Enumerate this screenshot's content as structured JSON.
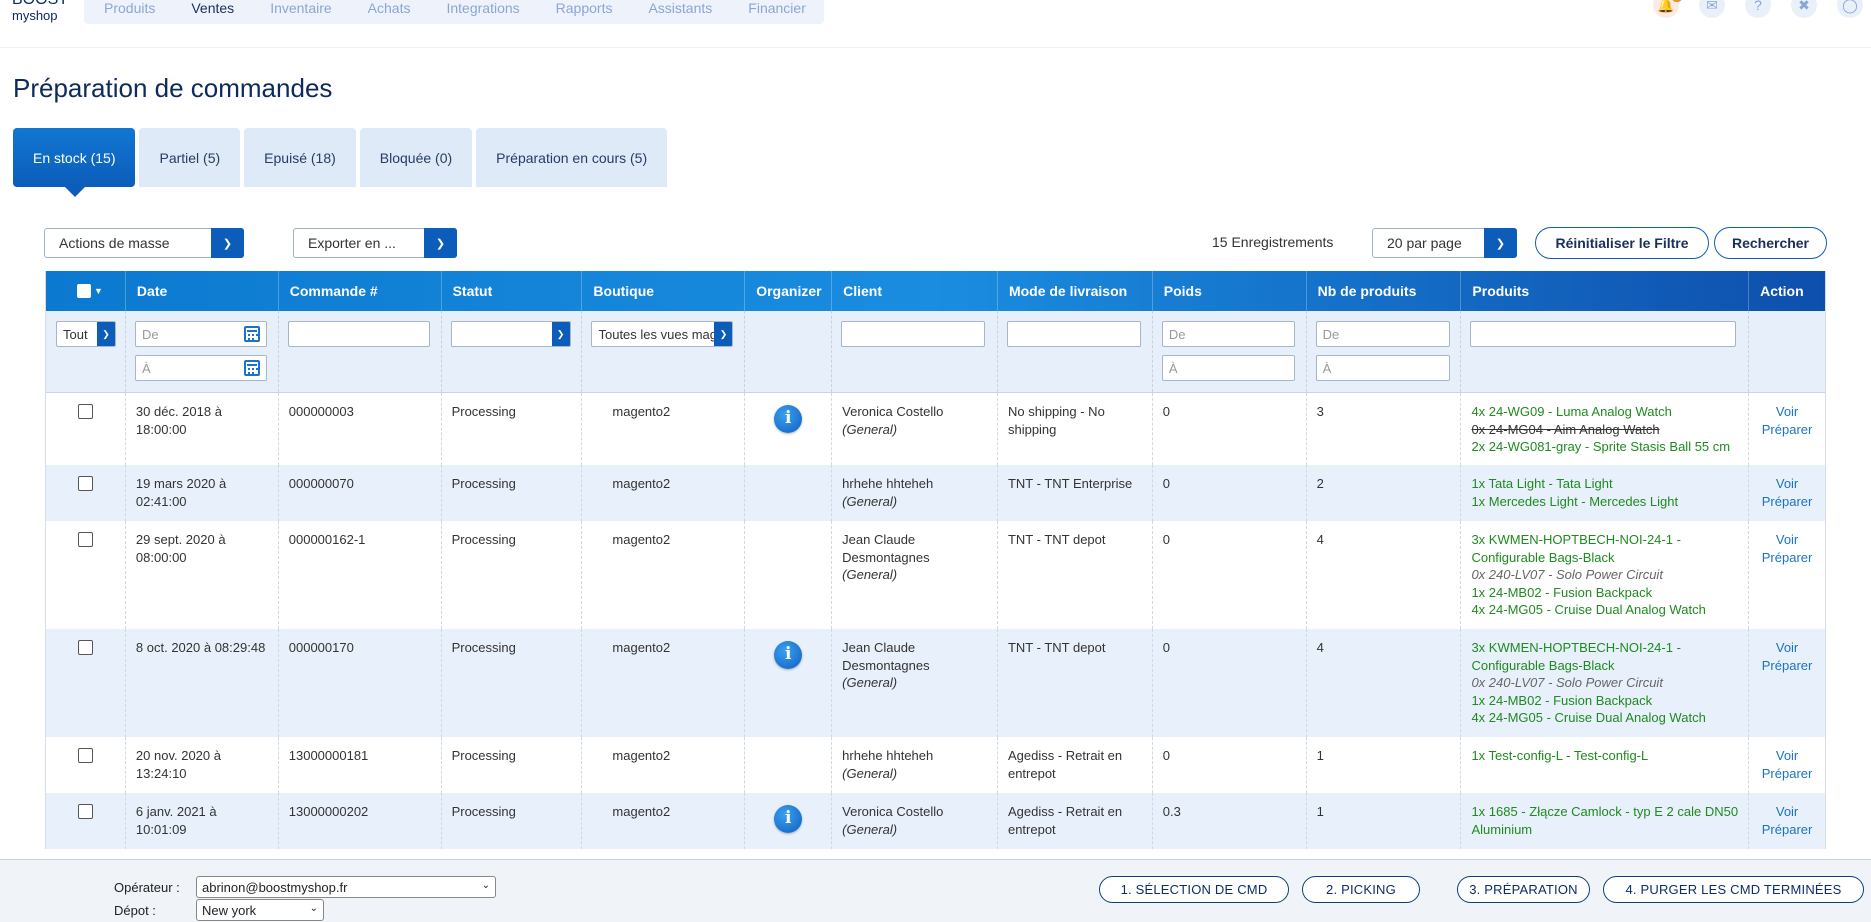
{
  "logo": {
    "line1": "BOOST",
    "line2": "myshop"
  },
  "nav": {
    "items": [
      "Produits",
      "Ventes",
      "Inventaire",
      "Achats",
      "Integrations",
      "Rapports",
      "Assistants",
      "Financier"
    ],
    "active": "Ventes"
  },
  "topicons": {
    "notification_count": "1"
  },
  "page": {
    "title": "Préparation de commandes"
  },
  "tabs": [
    {
      "label": "En stock (15)",
      "active": true
    },
    {
      "label": "Partiel (5)"
    },
    {
      "label": "Epuisé (18)"
    },
    {
      "label": "Bloquée (0)"
    },
    {
      "label": "Préparation en cours (5)"
    }
  ],
  "toolbar": {
    "mass_actions": "Actions de masse",
    "export": "Exporter en ...",
    "records": "15 Enregistrements",
    "per_page": "20 par page",
    "reset_filter": "Réinitialiser le Filtre",
    "search": "Rechercher"
  },
  "table": {
    "headers": [
      "Date",
      "Commande #",
      "Statut",
      "Boutique",
      "Organizer",
      "Client",
      "Mode de livraison",
      "Poids",
      "Nb de produits",
      "Produits",
      "Action"
    ],
    "filters": {
      "select_all": "Tout",
      "date_from": "De",
      "date_to": "À",
      "boutique": "Toutes les vues magasin",
      "poids_from": "De",
      "poids_to": "À",
      "nb_from": "De",
      "nb_to": "À"
    },
    "rows": [
      {
        "date": "30 déc. 2018 à 18:00:00",
        "order": "000000003",
        "status": "Processing",
        "shop": "magento2",
        "organizer": true,
        "client": "Veronica Costello",
        "group": "(General)",
        "shipping": "No shipping - No shipping",
        "weight": "0",
        "count": "3",
        "products": [
          {
            "text": "4x 24-WG09 - Luma Analog Watch",
            "style": "ok"
          },
          {
            "text": "0x 24-MG04 - Aim Analog Watch",
            "style": "strike"
          },
          {
            "text": "2x 24-WG081-gray - Sprite Stasis Ball 55 cm",
            "style": "ok"
          }
        ]
      },
      {
        "date": "19 mars 2020 à 02:41:00",
        "order": "000000070",
        "status": "Processing",
        "shop": "magento2",
        "organizer": false,
        "client": "hrhehe hhteheh",
        "group": "(General)",
        "shipping": "TNT - TNT Enterprise",
        "weight": "0",
        "count": "2",
        "products": [
          {
            "text": "1x Tata Light - Tata Light",
            "style": "ok"
          },
          {
            "text": "1x Mercedes Light - Mercedes Light",
            "style": "ok"
          }
        ]
      },
      {
        "date": "29 sept. 2020 à 08:00:00",
        "order": "000000162-1",
        "status": "Processing",
        "shop": "magento2",
        "organizer": false,
        "client": "Jean Claude Desmontagnes",
        "group": "(General)",
        "shipping": "TNT - TNT depot",
        "weight": "0",
        "count": "4",
        "products": [
          {
            "text": "3x KWMEN-HOPTBECH-NOI-24-1 - Configurable Bags-Black",
            "style": "ok"
          },
          {
            "text": "0x 240-LV07 - Solo Power Circuit",
            "style": "muted"
          },
          {
            "text": "1x 24-MB02 - Fusion Backpack",
            "style": "ok"
          },
          {
            "text": "4x 24-MG05 - Cruise Dual Analog Watch",
            "style": "ok"
          }
        ]
      },
      {
        "date": "8 oct. 2020 à 08:29:48",
        "order": "000000170",
        "status": "Processing",
        "shop": "magento2",
        "organizer": true,
        "client": "Jean Claude Desmontagnes",
        "group": "(General)",
        "shipping": "TNT - TNT depot",
        "weight": "0",
        "count": "4",
        "products": [
          {
            "text": "3x KWMEN-HOPTBECH-NOI-24-1 - Configurable Bags-Black",
            "style": "ok"
          },
          {
            "text": "0x 240-LV07 - Solo Power Circuit",
            "style": "muted"
          },
          {
            "text": "1x 24-MB02 - Fusion Backpack",
            "style": "ok"
          },
          {
            "text": "4x 24-MG05 - Cruise Dual Analog Watch",
            "style": "ok"
          }
        ]
      },
      {
        "date": "20 nov. 2020 à 13:24:10",
        "order": "13000000181",
        "status": "Processing",
        "shop": "magento2",
        "organizer": false,
        "client": "hrhehe hhteheh",
        "group": "(General)",
        "shipping": "Agediss - Retrait en entrepot",
        "weight": "0",
        "count": "1",
        "products": [
          {
            "text": "1x Test-config-L - Test-config-L",
            "style": "ok"
          }
        ]
      },
      {
        "date": "6 janv. 2021 à 10:01:09",
        "order": "13000000202",
        "status": "Processing",
        "shop": "magento2",
        "organizer": true,
        "client": "Veronica Costello",
        "group": "(General)",
        "shipping": "Agediss - Retrait en entrepot",
        "weight": "0.3",
        "count": "1",
        "products": [
          {
            "text": "1x 1685 - Złącze Camlock - typ E 2 cale DN50 Aluminium",
            "style": "ok"
          }
        ]
      }
    ],
    "action_view": "Voir",
    "action_prepare": "Préparer"
  },
  "bottom": {
    "operator_label": "Opérateur :",
    "operator_value": "abrinon@boostmyshop.fr",
    "depot_label": "Dépot :",
    "depot_value": "New york",
    "steps": [
      "1. SÉLECTION DE CMD",
      "2. PICKING",
      "3. PRÉPARATION",
      "4. PURGER LES CMD TERMINÉES"
    ]
  },
  "colors": {
    "primary": "#0b5db9",
    "header_gradient_start": "#0b79cf",
    "product_ok": "#1f8a1f",
    "row_alt": "#e8f1fb"
  }
}
